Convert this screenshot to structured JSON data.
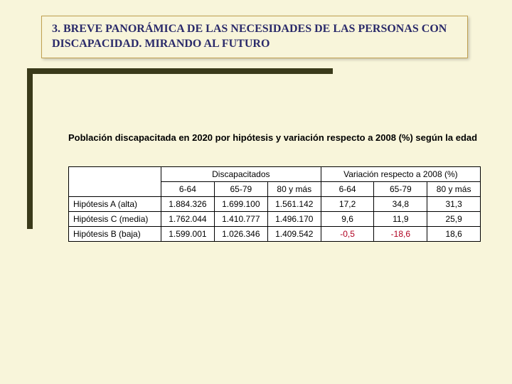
{
  "header": {
    "title": "3. BREVE PANORÁMICA DE LAS NECESIDADES DE LAS PERSONAS CON DISCAPACIDAD. MIRANDO AL FUTURO"
  },
  "caption": "Población discapacitada en 2020 por hipótesis y variación respecto a 2008 (%) según la edad",
  "table": {
    "group1": "Discapacitados",
    "group2": "Variación respecto a 2008 (%)",
    "age": {
      "a": "6-64",
      "b": "65-79",
      "c": "80 y más"
    },
    "rows": [
      {
        "label": "Hipótesis A (alta)",
        "d1": "1.884.326",
        "d2": "1.699.100",
        "d3": "1.561.142",
        "v1": "17,2",
        "v2": "34,8",
        "v3": "31,3",
        "neg": [
          false,
          false,
          false
        ]
      },
      {
        "label": "Hipótesis C (media)",
        "d1": "1.762.044",
        "d2": "1.410.777",
        "d3": "1.496.170",
        "v1": "9,6",
        "v2": "11,9",
        "v3": "25,9",
        "neg": [
          false,
          false,
          false
        ]
      },
      {
        "label": "Hipótesis B (baja)",
        "d1": "1.599.001",
        "d2": "1.026.346",
        "d3": "1.409.542",
        "v1": "-0,5",
        "v2": "-18,6",
        "v3": "18,6",
        "neg": [
          true,
          true,
          false
        ]
      }
    ]
  },
  "style": {
    "background": "#f8f5da",
    "header_border": "#c0a050",
    "header_text_color": "#2a2a6a",
    "sidebar_color": "#3a3a1a",
    "neg_color": "#b00020",
    "font_header": "Times New Roman",
    "font_body": "Arial"
  }
}
